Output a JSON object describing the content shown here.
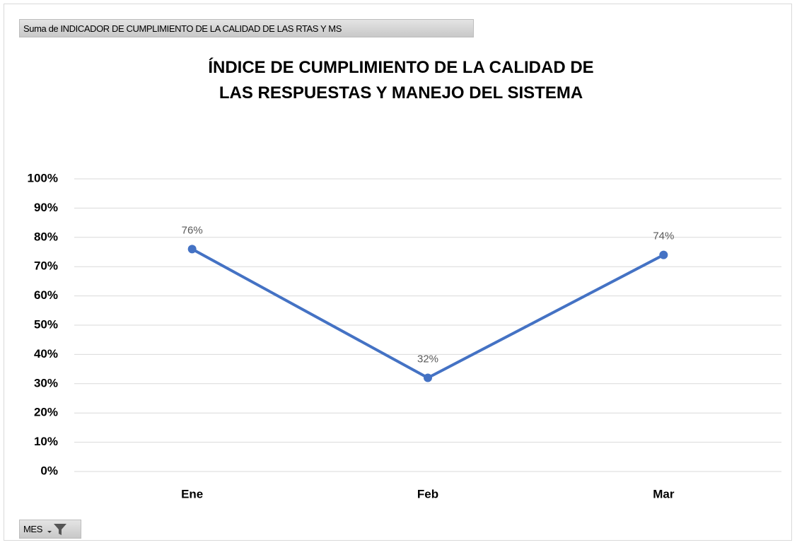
{
  "chart_data": {
    "type": "line",
    "title": "ÍNDICE DE CUMPLIMIENTO DE LA CALIDAD DE LAS RESPUESTAS Y MANEJO DEL SISTEMA",
    "field_buttons": {
      "value": "Suma de INDICADOR DE CUMPLIMIENTO DE LA CALIDAD DE LAS RTAS Y MS",
      "axis": "MES"
    },
    "categories": [
      "Ene",
      "Feb",
      "Mar"
    ],
    "values": [
      76,
      32,
      74
    ],
    "value_labels": [
      "76%",
      "32%",
      "74%"
    ],
    "color": "#4472c4",
    "ylim": [
      0,
      100
    ],
    "yticks": [
      {
        "value": 0,
        "label": "0%"
      },
      {
        "value": 10,
        "label": "10%"
      },
      {
        "value": 20,
        "label": "20%"
      },
      {
        "value": 30,
        "label": "30%"
      },
      {
        "value": 40,
        "label": "40%"
      },
      {
        "value": 50,
        "label": "50%"
      },
      {
        "value": 60,
        "label": "60%"
      },
      {
        "value": 70,
        "label": "70%"
      },
      {
        "value": 80,
        "label": "80%"
      },
      {
        "value": 90,
        "label": "90%"
      },
      {
        "value": 100,
        "label": "100%"
      }
    ],
    "grid": true
  }
}
